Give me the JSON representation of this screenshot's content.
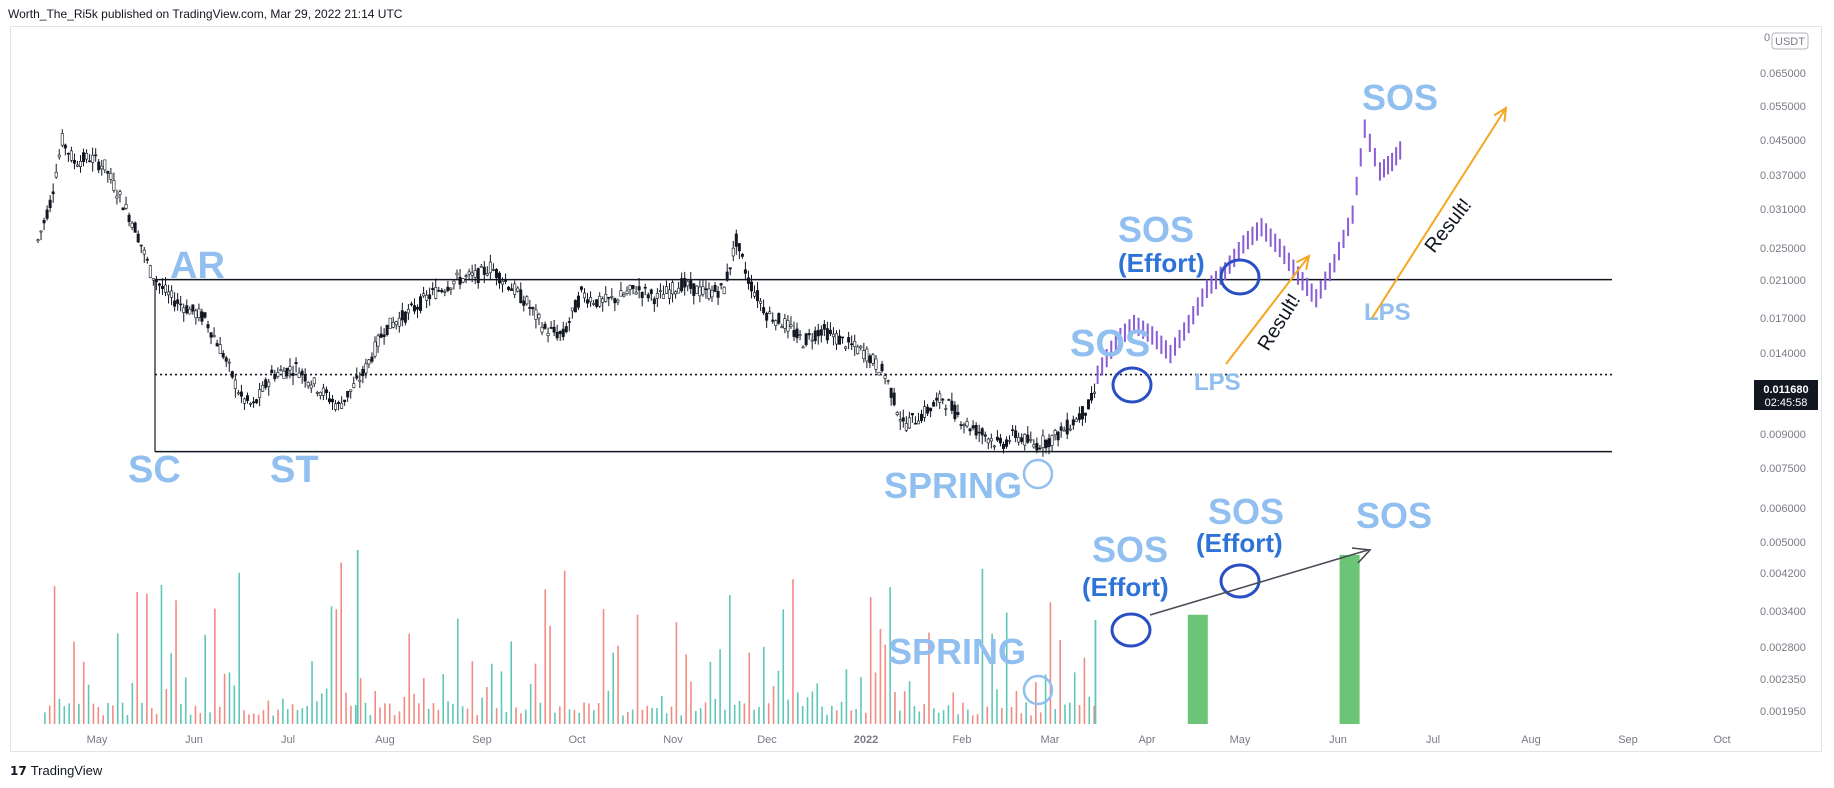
{
  "header": {
    "publisher": "Worth_The_Ri5k published on TradingView.com, Mar 29, 2022 21:14 UTC"
  },
  "footer": {
    "brand": "TradingView",
    "logo": "17"
  },
  "chart_data": {
    "type": "line",
    "quote_currency": "USDT",
    "last_price": {
      "value": "0.011680",
      "countdown": "02:45:58"
    },
    "y_axis": {
      "scale": "log",
      "ticks": [
        "0.065000",
        "0.055000",
        "0.045000",
        "0.037000",
        "0.031000",
        "0.025000",
        "0.021000",
        "0.017000",
        "0.014000",
        "0.011680",
        "0.009000",
        "0.007500",
        "0.006000",
        "0.005000",
        "0.004200",
        "0.003400",
        "0.002800",
        "0.002350",
        "0.001950"
      ]
    },
    "x_axis": {
      "ticks": [
        "May",
        "Jun",
        "Jul",
        "Aug",
        "Sep",
        "Oct",
        "Nov",
        "Dec",
        "2022",
        "Feb",
        "Mar",
        "Apr",
        "May",
        "Jun",
        "Jul",
        "Aug",
        "Sep",
        "Oct"
      ]
    },
    "levels": [
      {
        "name": "range-top",
        "value": 0.021,
        "style": "solid"
      },
      {
        "name": "range-mid",
        "value": 0.0125,
        "style": "dotted"
      },
      {
        "name": "range-bottom",
        "value": 0.0082,
        "style": "solid"
      }
    ],
    "annotations": {
      "price": [
        "AR",
        "SC",
        "ST",
        "SPRING",
        "SOS",
        "SOS",
        "(Effort)",
        "LPS",
        "Result!",
        "LPS",
        "Result!",
        "SOS"
      ],
      "volume": [
        "SPRING",
        "SOS",
        "(Effort)",
        "SOS",
        "(Effort)",
        "SOS"
      ]
    },
    "colors": {
      "candles": "#131722",
      "projection": "#8a5cd6",
      "arrow": "#f5a623",
      "label": "#90bff0",
      "label_strong": "#2e73d8",
      "vol_up": "#5fc7b8",
      "vol_down": "#f28b82",
      "vol_projection": "#6cc477"
    },
    "price_series": {
      "name": "",
      "x": [
        "2021-04-14",
        "2021-04-18",
        "2021-04-22",
        "2021-04-26",
        "2021-05-01",
        "2021-05-06",
        "2021-05-11",
        "2021-05-16",
        "2021-05-21",
        "2021-05-25",
        "2021-05-28",
        "2021-06-02",
        "2021-06-08",
        "2021-06-14",
        "2021-06-20",
        "2021-06-24",
        "2021-06-30",
        "2021-07-08",
        "2021-07-16",
        "2021-07-22",
        "2021-07-30",
        "2021-08-06",
        "2021-08-14",
        "2021-08-22",
        "2021-08-30",
        "2021-09-06",
        "2021-09-10",
        "2021-09-16",
        "2021-09-22",
        "2021-09-28",
        "2021-10-04",
        "2021-10-10",
        "2021-10-16",
        "2021-10-22",
        "2021-10-28",
        "2021-11-04",
        "2021-11-12",
        "2021-11-20",
        "2021-11-26",
        "2021-11-30",
        "2021-12-04",
        "2021-12-10",
        "2021-12-16",
        "2021-12-22",
        "2021-12-28",
        "2022-01-04",
        "2022-01-12",
        "2022-01-18",
        "2022-01-24",
        "2022-01-30",
        "2022-02-06",
        "2022-02-14",
        "2022-02-20",
        "2022-02-25",
        "2022-03-02",
        "2022-03-08",
        "2022-03-14",
        "2022-03-20",
        "2022-03-26",
        "2022-03-29"
      ],
      "close": [
        0.026,
        0.032,
        0.045,
        0.04,
        0.041,
        0.039,
        0.033,
        0.028,
        0.022,
        0.02,
        0.019,
        0.018,
        0.017,
        0.014,
        0.011,
        0.0105,
        0.0125,
        0.013,
        0.0115,
        0.0105,
        0.0125,
        0.016,
        0.0175,
        0.0195,
        0.021,
        0.0215,
        0.0225,
        0.0205,
        0.0185,
        0.016,
        0.0155,
        0.0195,
        0.0185,
        0.019,
        0.02,
        0.019,
        0.0205,
        0.0195,
        0.02,
        0.026,
        0.021,
        0.0175,
        0.0165,
        0.015,
        0.016,
        0.015,
        0.014,
        0.0125,
        0.0095,
        0.01,
        0.011,
        0.0095,
        0.009,
        0.0085,
        0.009,
        0.0085,
        0.0088,
        0.0095,
        0.0105,
        0.0117
      ]
    },
    "projection_series": {
      "name": "",
      "x": [
        "2022-03-29",
        "2022-04-04",
        "2022-04-10",
        "2022-04-16",
        "2022-04-22",
        "2022-04-28",
        "2022-05-04",
        "2022-05-10",
        "2022-05-16",
        "2022-05-22",
        "2022-05-28",
        "2022-06-03",
        "2022-06-09",
        "2022-06-15",
        "2022-06-21",
        "2022-06-25",
        "2022-06-30",
        "2022-07-04",
        "2022-07-08"
      ],
      "close": [
        0.0125,
        0.015,
        0.0165,
        0.0155,
        0.014,
        0.0165,
        0.02,
        0.022,
        0.0255,
        0.028,
        0.025,
        0.0215,
        0.019,
        0.023,
        0.03,
        0.048,
        0.038,
        0.04,
        0.044
      ]
    },
    "volume_series": {
      "name": "",
      "projection_bars": [
        {
          "x": "2022-05-01",
          "value": 0.0037
        },
        {
          "x": "2022-06-20",
          "value": 0.0048
        }
      ]
    }
  }
}
